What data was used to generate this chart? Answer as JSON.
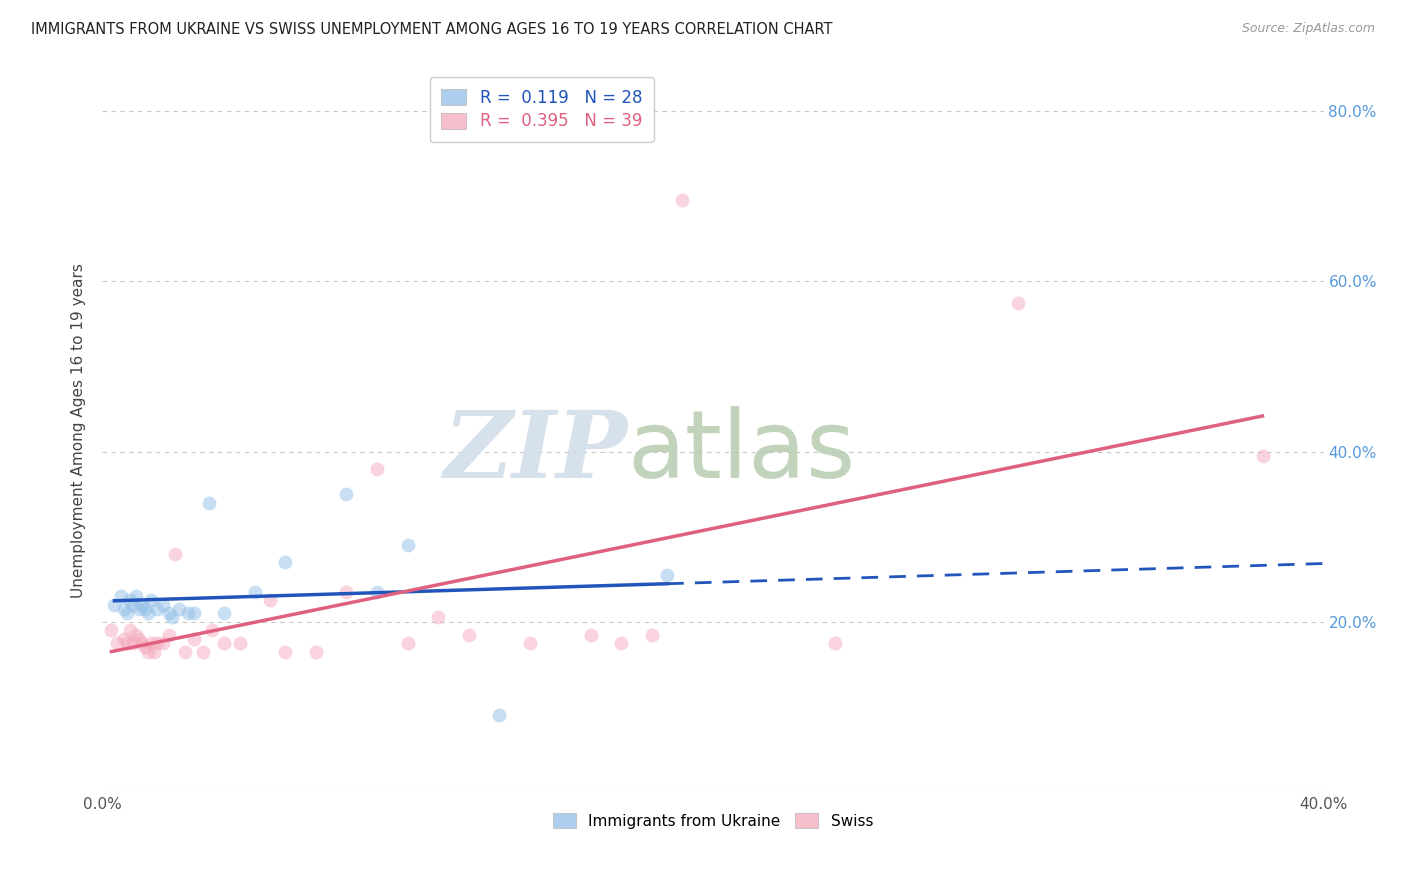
{
  "title": "IMMIGRANTS FROM UKRAINE VS SWISS UNEMPLOYMENT AMONG AGES 16 TO 19 YEARS CORRELATION CHART",
  "source": "Source: ZipAtlas.com",
  "ylabel": "Unemployment Among Ages 16 to 19 years",
  "xlim": [
    0.0,
    0.4
  ],
  "ylim": [
    0.0,
    0.85
  ],
  "grid_color": "#c8c8c8",
  "background_color": "#ffffff",
  "ukraine_color": "#92bfe8",
  "swiss_color": "#f5a8bc",
  "ukraine_line_color": "#2255bb",
  "swiss_line_color": "#e06080",
  "ukraine_R": 0.119,
  "ukraine_N": 28,
  "swiss_R": 0.395,
  "swiss_N": 39,
  "ukraine_scatter_x": [
    0.004,
    0.006,
    0.007,
    0.008,
    0.009,
    0.01,
    0.011,
    0.012,
    0.013,
    0.014,
    0.015,
    0.016,
    0.018,
    0.02,
    0.022,
    0.023,
    0.025,
    0.028,
    0.03,
    0.035,
    0.04,
    0.05,
    0.06,
    0.08,
    0.09,
    0.1,
    0.13,
    0.185
  ],
  "ukraine_scatter_y": [
    0.22,
    0.23,
    0.215,
    0.21,
    0.225,
    0.22,
    0.23,
    0.215,
    0.22,
    0.215,
    0.21,
    0.225,
    0.215,
    0.22,
    0.21,
    0.205,
    0.215,
    0.21,
    0.21,
    0.34,
    0.21,
    0.235,
    0.27,
    0.35,
    0.235,
    0.29,
    0.09,
    0.255
  ],
  "swiss_scatter_x": [
    0.003,
    0.005,
    0.007,
    0.008,
    0.009,
    0.01,
    0.011,
    0.012,
    0.013,
    0.014,
    0.015,
    0.016,
    0.017,
    0.018,
    0.02,
    0.022,
    0.024,
    0.027,
    0.03,
    0.033,
    0.036,
    0.04,
    0.045,
    0.055,
    0.06,
    0.07,
    0.08,
    0.09,
    0.1,
    0.11,
    0.12,
    0.14,
    0.16,
    0.17,
    0.18,
    0.19,
    0.24,
    0.3,
    0.38
  ],
  "swiss_scatter_y": [
    0.19,
    0.175,
    0.18,
    0.175,
    0.19,
    0.175,
    0.185,
    0.18,
    0.175,
    0.17,
    0.165,
    0.175,
    0.165,
    0.175,
    0.175,
    0.185,
    0.28,
    0.165,
    0.18,
    0.165,
    0.19,
    0.175,
    0.175,
    0.225,
    0.165,
    0.165,
    0.235,
    0.38,
    0.175,
    0.205,
    0.185,
    0.175,
    0.185,
    0.175,
    0.185,
    0.695,
    0.175,
    0.575,
    0.395
  ],
  "watermark_zip": "ZIP",
  "watermark_atlas": "atlas",
  "watermark_color_zip": "#d0dce8",
  "watermark_color_atlas": "#b8ccb0",
  "marker_size": 100,
  "alpha": 0.5,
  "ukraine_line_solid_xmax": 0.185,
  "ukraine_line_dash_xmax": 0.4,
  "swiss_line_xmin": 0.003,
  "swiss_line_xmax": 0.38
}
